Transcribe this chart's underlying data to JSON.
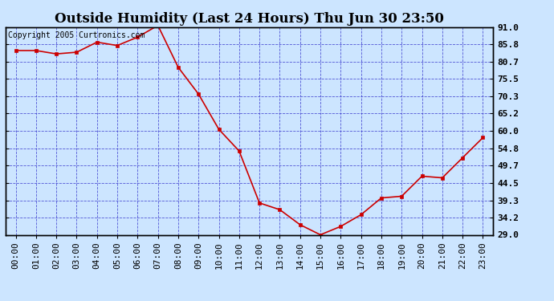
{
  "title": "Outside Humidity (Last 24 Hours) Thu Jun 30 23:50",
  "copyright": "Copyright 2005 Curtronics.com",
  "x_labels": [
    "00:00",
    "01:00",
    "02:00",
    "03:00",
    "04:00",
    "05:00",
    "06:00",
    "07:00",
    "08:00",
    "09:00",
    "10:00",
    "11:00",
    "12:00",
    "13:00",
    "14:00",
    "15:00",
    "16:00",
    "17:00",
    "18:00",
    "19:00",
    "20:00",
    "21:00",
    "22:00",
    "23:00"
  ],
  "y_values": [
    84.0,
    84.0,
    83.0,
    83.5,
    86.5,
    85.5,
    88.0,
    91.5,
    79.0,
    71.0,
    60.5,
    54.0,
    38.5,
    36.5,
    32.0,
    29.0,
    31.5,
    35.0,
    40.0,
    40.5,
    46.5,
    46.0,
    52.0,
    58.0
  ],
  "ylim_min": 29.0,
  "ylim_max": 91.0,
  "yticks": [
    29.0,
    34.2,
    39.3,
    44.5,
    49.7,
    54.8,
    60.0,
    65.2,
    70.3,
    75.5,
    80.7,
    85.8,
    91.0
  ],
  "line_color": "#cc0000",
  "marker_color": "#cc0000",
  "bg_color": "#cce5ff",
  "plot_bg_color": "#cce5ff",
  "grid_color": "#3333cc",
  "title_fontsize": 12,
  "copyright_fontsize": 7,
  "tick_fontsize": 8,
  "border_color": "#000000"
}
